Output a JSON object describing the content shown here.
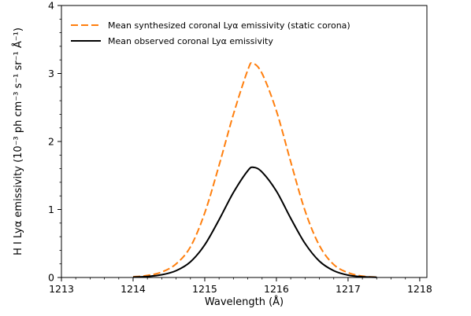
{
  "chart_data": {
    "type": "line",
    "xlabel": "Wavelength (Å)",
    "ylabel": "H I Lyα emissivity (10⁻³ ph cm⁻³ s⁻¹ sr⁻¹ Å⁻¹)",
    "xlim": [
      1213,
      1218.1
    ],
    "ylim": [
      0,
      4
    ],
    "xticks": [
      "1213",
      "1214",
      "1215",
      "1216",
      "1217",
      "1218"
    ],
    "yticks": [
      "0",
      "1",
      "2",
      "3",
      "4"
    ],
    "grid": false,
    "legend_position": "top-left",
    "series": [
      {
        "name": "Mean synthesized coronal Lyα emissivity (static corona)",
        "color": "#ff7f0e",
        "dash": "dashed",
        "x": [
          1214.0,
          1214.2,
          1214.4,
          1214.6,
          1214.8,
          1215.0,
          1215.2,
          1215.4,
          1215.6,
          1215.67,
          1215.8,
          1216.0,
          1216.2,
          1216.4,
          1216.6,
          1216.8,
          1217.0,
          1217.2,
          1217.4
        ],
        "y": [
          0.01,
          0.03,
          0.08,
          0.2,
          0.45,
          0.95,
          1.65,
          2.4,
          3.05,
          3.15,
          3.0,
          2.45,
          1.7,
          0.98,
          0.47,
          0.19,
          0.07,
          0.02,
          0.005
        ]
      },
      {
        "name": "Mean observed coronal Lyα emissivity",
        "color": "#000000",
        "dash": "solid",
        "x": [
          1214.0,
          1214.2,
          1214.4,
          1214.6,
          1214.8,
          1215.0,
          1215.2,
          1215.4,
          1215.6,
          1215.68,
          1215.8,
          1216.0,
          1216.2,
          1216.4,
          1216.6,
          1216.8,
          1217.0,
          1217.2,
          1217.4
        ],
        "y": [
          0.005,
          0.015,
          0.04,
          0.1,
          0.23,
          0.48,
          0.85,
          1.25,
          1.57,
          1.62,
          1.55,
          1.27,
          0.87,
          0.5,
          0.24,
          0.1,
          0.035,
          0.01,
          0.003
        ]
      }
    ]
  }
}
